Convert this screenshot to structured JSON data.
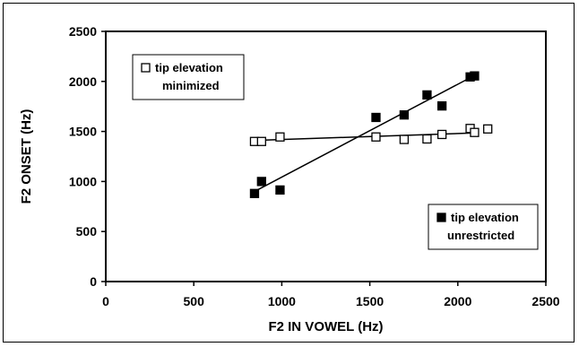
{
  "chart_data": {
    "type": "scatter",
    "title": "",
    "xlabel": "F2 IN VOWEL (Hz)",
    "ylabel": "F2 ONSET (Hz)",
    "xlim": [
      0,
      2500
    ],
    "ylim": [
      0,
      2500
    ],
    "x_ticks": [
      "0",
      "500",
      "1000",
      "1500",
      "2000",
      "2500"
    ],
    "y_ticks": [
      "0",
      "500",
      "1000",
      "1500",
      "2000",
      "2500"
    ],
    "grid": false,
    "series": [
      {
        "name": "tip elevation minimized",
        "legend_lines": [
          "tip elevation",
          "minimized"
        ],
        "legend_position": "top-left",
        "marker": "open-square",
        "points": [
          {
            "x": 845,
            "y": 1400
          },
          {
            "x": 885,
            "y": 1400
          },
          {
            "x": 990,
            "y": 1445
          },
          {
            "x": 1535,
            "y": 1445
          },
          {
            "x": 1695,
            "y": 1420
          },
          {
            "x": 1825,
            "y": 1425
          },
          {
            "x": 1910,
            "y": 1470
          },
          {
            "x": 2070,
            "y": 1530
          },
          {
            "x": 2095,
            "y": 1490
          },
          {
            "x": 2170,
            "y": 1525
          }
        ],
        "fit_line": {
          "x": [
            845,
            2095
          ],
          "y": [
            1410,
            1485
          ]
        }
      },
      {
        "name": "tip elevation unrestricted",
        "legend_lines": [
          "tip elevation",
          "unrestricted"
        ],
        "legend_position": "bottom-right",
        "marker": "filled-square",
        "points": [
          {
            "x": 845,
            "y": 880
          },
          {
            "x": 885,
            "y": 1000
          },
          {
            "x": 990,
            "y": 915
          },
          {
            "x": 1535,
            "y": 1640
          },
          {
            "x": 1695,
            "y": 1665
          },
          {
            "x": 1825,
            "y": 1865
          },
          {
            "x": 1910,
            "y": 1755
          },
          {
            "x": 2070,
            "y": 2045
          },
          {
            "x": 2095,
            "y": 2055
          }
        ],
        "fit_line": {
          "x": [
            845,
            2095
          ],
          "y": [
            900,
            2060
          ]
        }
      }
    ]
  }
}
